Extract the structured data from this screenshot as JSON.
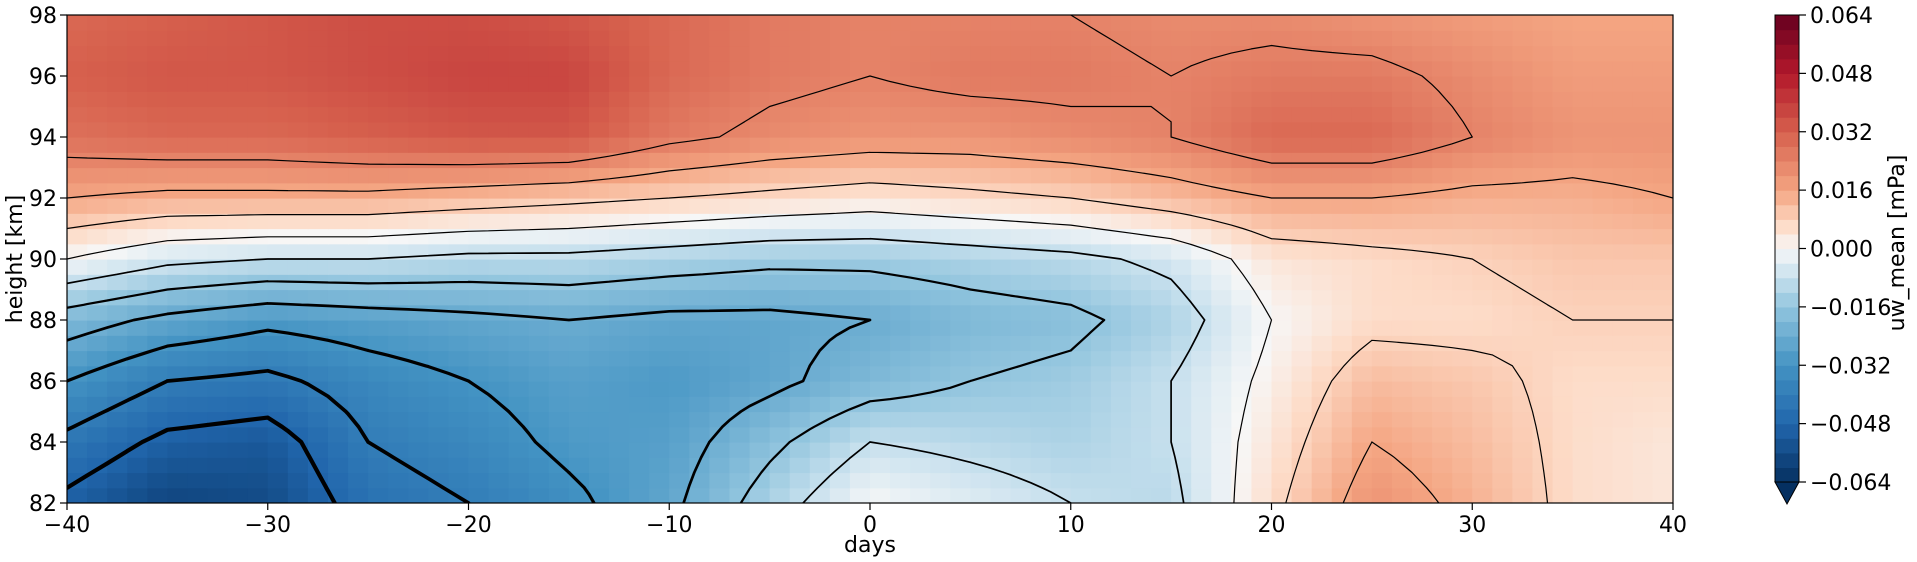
{
  "chart_data": {
    "type": "heatmap",
    "title": "",
    "xlabel": "days",
    "ylabel": "height [km]",
    "xlim": [
      -40,
      40
    ],
    "ylim": [
      82,
      98
    ],
    "xticks": [
      "−40",
      "−30",
      "−20",
      "−10",
      "0",
      "10",
      "20",
      "30",
      "40"
    ],
    "yticks": [
      "82",
      "84",
      "86",
      "88",
      "90",
      "92",
      "94",
      "96",
      "98"
    ],
    "colorbar": {
      "label": "uw_mean [mPa]",
      "range": [
        -0.064,
        0.064
      ],
      "extend": "min",
      "ticks": [
        "−0.064",
        "−0.048",
        "−0.032",
        "−0.016",
        "0.000",
        "0.016",
        "0.032",
        "0.048",
        "0.064"
      ],
      "colormap": "RdBu_r",
      "low_color": "#053061",
      "mid_color": "#f7f7f7",
      "high_color": "#67001f"
    },
    "x": [
      -40,
      -35,
      -30,
      -25,
      -20,
      -15,
      -10,
      -5,
      0,
      5,
      10,
      15,
      20,
      25,
      30,
      35,
      40
    ],
    "y": [
      82,
      84,
      86,
      88,
      90,
      92,
      94,
      96,
      98
    ],
    "z": [
      [
        -0.05,
        -0.058,
        -0.056,
        -0.044,
        -0.04,
        -0.034,
        -0.026,
        -0.012,
        0.0,
        -0.004,
        -0.008,
        -0.01,
        0.006,
        0.02,
        0.014,
        0.006,
        0.004
      ],
      [
        -0.042,
        -0.05,
        -0.052,
        -0.04,
        -0.036,
        -0.03,
        -0.028,
        -0.018,
        -0.008,
        -0.01,
        -0.012,
        -0.008,
        0.004,
        0.016,
        0.012,
        0.006,
        0.004
      ],
      [
        -0.032,
        -0.04,
        -0.042,
        -0.036,
        -0.032,
        -0.028,
        -0.03,
        -0.026,
        -0.02,
        -0.016,
        -0.014,
        -0.008,
        0.002,
        0.012,
        0.01,
        0.006,
        0.006
      ],
      [
        -0.02,
        -0.026,
        -0.03,
        -0.028,
        -0.026,
        -0.024,
        -0.026,
        -0.026,
        -0.024,
        -0.02,
        -0.018,
        -0.012,
        0.0,
        0.006,
        0.006,
        0.008,
        0.008
      ],
      [
        0.0,
        -0.006,
        -0.008,
        -0.008,
        -0.01,
        -0.01,
        -0.012,
        -0.014,
        -0.014,
        -0.012,
        -0.01,
        -0.006,
        0.004,
        0.006,
        0.008,
        0.01,
        0.01
      ],
      [
        0.016,
        0.014,
        0.014,
        0.014,
        0.012,
        0.01,
        0.008,
        0.006,
        0.004,
        0.006,
        0.008,
        0.012,
        0.016,
        0.016,
        0.014,
        0.014,
        0.016
      ],
      [
        0.028,
        0.03,
        0.03,
        0.032,
        0.034,
        0.034,
        0.026,
        0.022,
        0.02,
        0.02,
        0.022,
        0.024,
        0.03,
        0.03,
        0.024,
        0.02,
        0.02
      ],
      [
        0.032,
        0.034,
        0.034,
        0.036,
        0.038,
        0.038,
        0.03,
        0.026,
        0.024,
        0.026,
        0.026,
        0.024,
        0.026,
        0.026,
        0.022,
        0.018,
        0.018
      ],
      [
        0.03,
        0.032,
        0.034,
        0.036,
        0.036,
        0.034,
        0.03,
        0.026,
        0.024,
        0.024,
        0.024,
        0.022,
        0.022,
        0.02,
        0.018,
        0.016,
        0.016
      ]
    ],
    "contour_levels": [
      -0.048,
      -0.04,
      -0.032,
      -0.024,
      -0.016,
      -0.008,
      0.0,
      0.008,
      0.016,
      0.024
    ]
  }
}
